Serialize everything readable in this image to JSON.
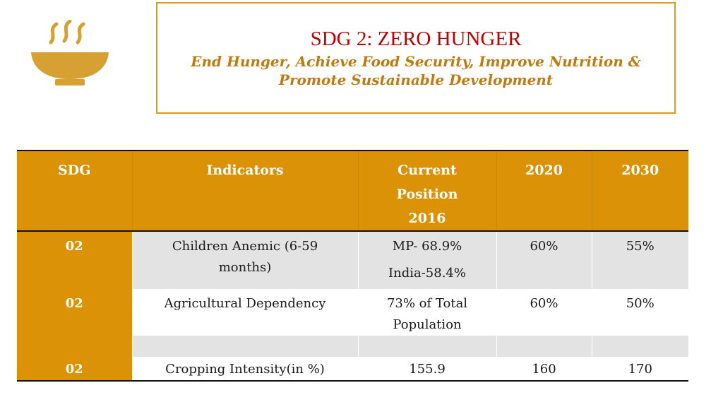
{
  "icon": {
    "name": "soup-bowl-icon",
    "color": "#d6a132"
  },
  "title": {
    "main": "SDG 2: ZERO HUNGER",
    "subtitle_line1": "End Hunger, Achieve Food Security, Improve Nutrition &",
    "subtitle_line2": "Promote Sustainable Development"
  },
  "table": {
    "headers": {
      "sdg": "SDG",
      "indicators": "Indicators",
      "current_line1": "Current",
      "current_line2": "Position",
      "current_line3": "2016",
      "y2020": "2020",
      "y2030": "2030"
    },
    "rows": [
      {
        "sdg": "02",
        "indicator_line1": "Children Anemic (6-59",
        "indicator_line2": "months)",
        "current_line1": "MP- 68.9%",
        "current_line2": "India-58.4%",
        "y2020": "60%",
        "y2030": "55%"
      },
      {
        "sdg": "02",
        "indicator_line1": "Agricultural Dependency",
        "current_line1": "73% of Total",
        "current_line2": "Population",
        "y2020": "60%",
        "y2030": "50%"
      },
      {
        "sdg": "",
        "indicator_line1": "",
        "current_line1": "",
        "y2020": "",
        "y2030": ""
      },
      {
        "sdg": "02",
        "indicator_line1": "Cropping Intensity(in %)",
        "current_line1": "155.9",
        "y2020": "160",
        "y2030": "170"
      }
    ]
  },
  "colors": {
    "header_bg": "#db9206",
    "title_red": "#c00000",
    "subtitle_gold": "#c07a10",
    "box_border": "#e09a1c",
    "row_gray": "#e3e3e3"
  }
}
